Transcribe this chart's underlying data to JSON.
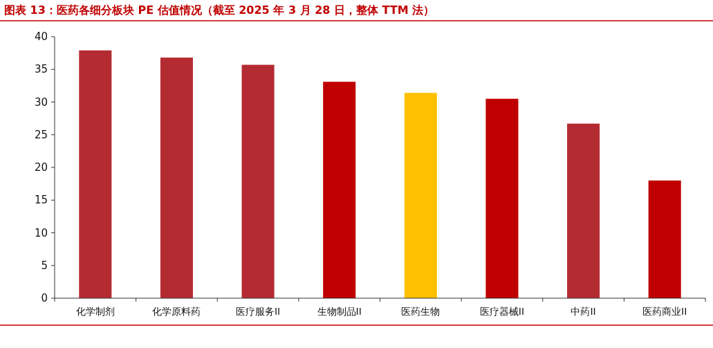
{
  "chart_data": {
    "type": "bar",
    "title": "图表 13：医药各细分板块 PE 估值情况（截至 2025 年 3 月 28 日，整体 TTM 法）",
    "categories": [
      "化学制剂",
      "化学原料药",
      "医疗服务II",
      "生物制品II",
      "医药生物",
      "医疗器械II",
      "中药II",
      "医药商业II"
    ],
    "values": [
      37.9,
      36.8,
      35.7,
      33.1,
      31.4,
      30.5,
      26.7,
      18.0
    ],
    "colors": [
      "#b52b32",
      "#b52b32",
      "#b52b32",
      "#c00000",
      "#ffc000",
      "#c00000",
      "#b52b32",
      "#c00000"
    ],
    "ylim": [
      0,
      40
    ],
    "yticks": [
      0,
      5,
      10,
      15,
      20,
      25,
      30,
      35,
      40
    ],
    "grid": false
  }
}
